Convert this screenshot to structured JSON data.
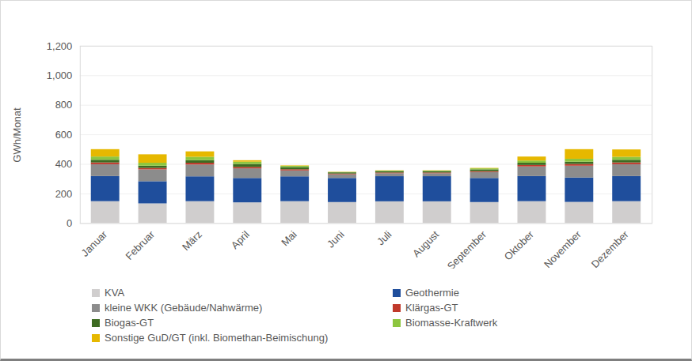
{
  "chart_data": {
    "type": "bar",
    "stacked": true,
    "grid": true,
    "legend": "bottom",
    "y_label": "GWh/Monat",
    "categories": [
      "Januar",
      "Februar",
      "März",
      "April",
      "Mai",
      "Juni",
      "Juli",
      "August",
      "September",
      "Oktober",
      "November",
      "Dezember"
    ],
    "ylim": [
      0,
      1200
    ],
    "yticks": [
      0,
      200,
      400,
      600,
      800,
      1000,
      1200
    ],
    "series": [
      {
        "name": "KVA",
        "color": "#d0cece",
        "values": [
          148,
          133,
          148,
          140,
          148,
          142,
          147,
          147,
          142,
          148,
          143,
          148
        ]
      },
      {
        "name": "Geothermie",
        "color": "#1f4e9c",
        "values": [
          170,
          150,
          168,
          165,
          168,
          163,
          170,
          170,
          163,
          170,
          165,
          170
        ]
      },
      {
        "name": "kleine WKK (Gebäude/Nahwärme)",
        "color": "#8c8c8c",
        "values": [
          80,
          80,
          80,
          65,
          40,
          25,
          20,
          20,
          40,
          65,
          80,
          80
        ]
      },
      {
        "name": "Klärgas-GT",
        "color": "#c0392b",
        "values": [
          12,
          10,
          12,
          10,
          8,
          5,
          5,
          5,
          6,
          10,
          12,
          12
        ]
      },
      {
        "name": "Biogas-GT",
        "color": "#3d6b22",
        "values": [
          18,
          15,
          18,
          20,
          15,
          8,
          10,
          10,
          12,
          15,
          15,
          18
        ]
      },
      {
        "name": "Biomasse-Kraftwerk",
        "color": "#8dc63f",
        "values": [
          22,
          20,
          22,
          15,
          8,
          2,
          3,
          3,
          7,
          15,
          20,
          20
        ]
      },
      {
        "name": "Sonstige GuD/GT (inkl. Biomethan-Beimischung)",
        "color": "#e6b800",
        "values": [
          50,
          57,
          37,
          10,
          3,
          2,
          2,
          2,
          3,
          27,
          65,
          50
        ]
      }
    ]
  }
}
